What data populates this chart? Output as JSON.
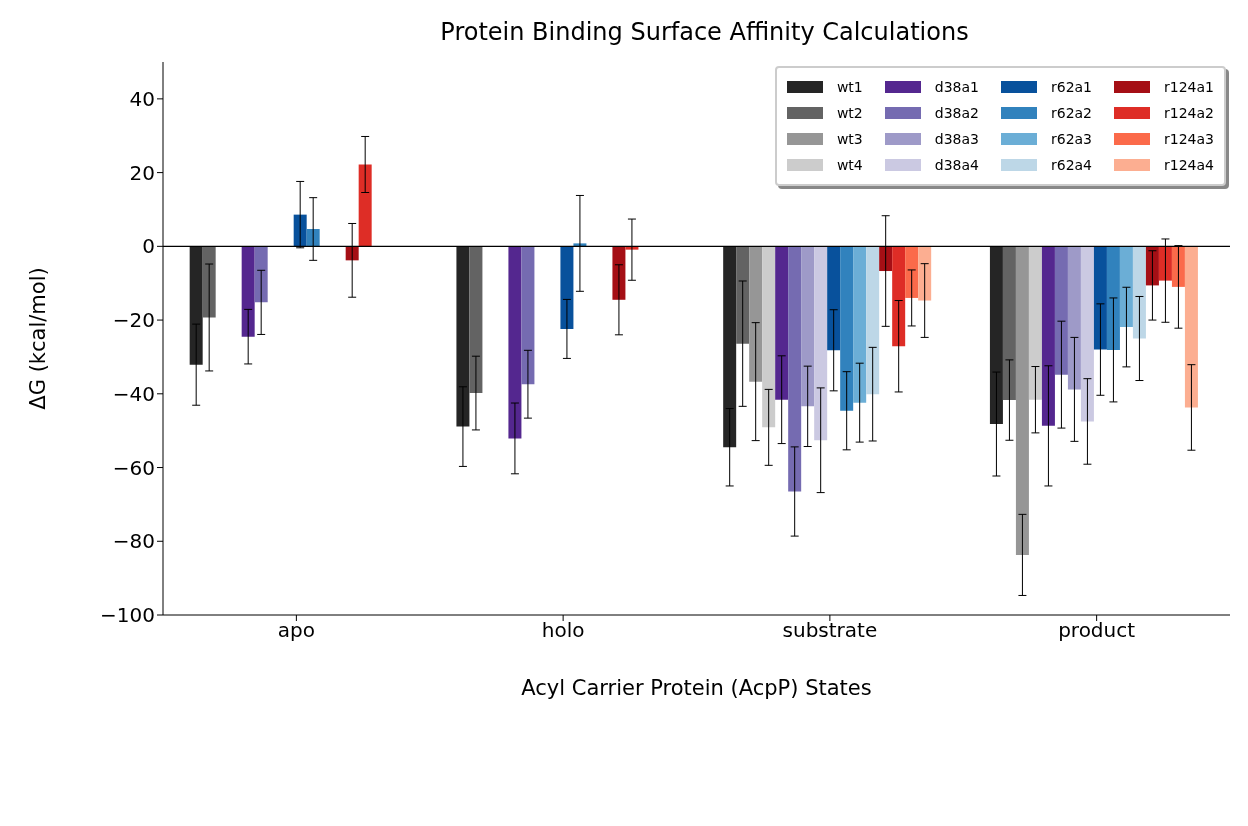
{
  "chart_data": {
    "type": "bar",
    "title": "Protein Binding Surface Affinity Calculations",
    "xlabel": "Acyl Carrier Protein (AcpP) States",
    "ylabel": "ΔG (kcal/mol)",
    "categories": [
      "apo",
      "holo",
      "substrate",
      "product"
    ],
    "series": [
      {
        "name": "wt1",
        "color": "#252525",
        "values": [
          -32.1,
          -48.9,
          -54.5,
          -48.2
        ],
        "errors": [
          11,
          10.8,
          10.5,
          14.1
        ]
      },
      {
        "name": "wt2",
        "color": "#636363",
        "values": [
          -19.3,
          -39.8,
          -26.4,
          -41.7
        ],
        "errors": [
          14.5,
          10,
          17,
          10.9
        ]
      },
      {
        "name": "wt3",
        "color": "#969696",
        "values": [
          null,
          null,
          -36.7,
          -83.7
        ],
        "errors": [
          null,
          null,
          16,
          11
        ]
      },
      {
        "name": "wt4",
        "color": "#cccccc",
        "values": [
          null,
          null,
          -49.1,
          -41.6
        ],
        "errors": [
          null,
          null,
          10.3,
          9
        ]
      },
      {
        "name": "d38a1",
        "color": "#54278f",
        "values": [
          -24.5,
          -52.1,
          -41.6,
          -48.7
        ],
        "errors": [
          7.4,
          9.6,
          11.9,
          16.3
        ]
      },
      {
        "name": "d38a2",
        "color": "#756bb1",
        "values": [
          -15.2,
          -37.4,
          -66.5,
          -34.8
        ],
        "errors": [
          8.7,
          9.2,
          12.1,
          14.5
        ]
      },
      {
        "name": "d38a3",
        "color": "#9e9ac8",
        "values": [
          null,
          null,
          -43.4,
          -38.8
        ],
        "errors": [
          null,
          null,
          10.9,
          14.1
        ]
      },
      {
        "name": "d38a4",
        "color": "#cbc9e2",
        "values": [
          null,
          null,
          -52.6,
          -47.5
        ],
        "errors": [
          null,
          null,
          14.2,
          11.6
        ]
      },
      {
        "name": "r62a1",
        "color": "#08519c",
        "values": [
          8.6,
          -22.4,
          -28.2,
          -28.0
        ],
        "errors": [
          9,
          8,
          11,
          12.4
        ]
      },
      {
        "name": "r62a2",
        "color": "#3182bd",
        "values": [
          4.7,
          0.8,
          -44.6,
          -28.1
        ],
        "errors": [
          8.5,
          13,
          10.6,
          14.1
        ]
      },
      {
        "name": "r62a3",
        "color": "#6baed6",
        "values": [
          null,
          null,
          -42.4,
          -21.9
        ],
        "errors": [
          null,
          null,
          10.7,
          10.8
        ]
      },
      {
        "name": "r62a4",
        "color": "#bdd7e7",
        "values": [
          null,
          null,
          -40.1,
          -25.0
        ],
        "errors": [
          null,
          null,
          12.7,
          11.4
        ]
      },
      {
        "name": "r124a1",
        "color": "#a50f15",
        "values": [
          -3.8,
          -14.5,
          -6.7,
          -10.6
        ],
        "errors": [
          10,
          9.5,
          15,
          9.4
        ]
      },
      {
        "name": "r124a2",
        "color": "#de2d26",
        "values": [
          22.2,
          -0.9,
          -27.1,
          -9.3
        ],
        "errors": [
          7.6,
          8.3,
          12.4,
          11.3
        ]
      },
      {
        "name": "r124a3",
        "color": "#fb6a4a",
        "values": [
          null,
          null,
          -14.0,
          -11.0
        ],
        "errors": [
          null,
          null,
          7.6,
          11.2
        ]
      },
      {
        "name": "r124a4",
        "color": "#fcae91",
        "values": [
          null,
          null,
          -14.7,
          -43.7
        ],
        "errors": [
          null,
          null,
          10,
          11.6
        ]
      }
    ],
    "ylim": [
      -100,
      50
    ],
    "yticks": [
      -100,
      -80,
      -60,
      -40,
      -20,
      0,
      20,
      40
    ],
    "ref_lines": [
      {
        "axis": "y",
        "value": 0,
        "color": "#000000"
      }
    ],
    "grid": false,
    "legend": "top right"
  }
}
